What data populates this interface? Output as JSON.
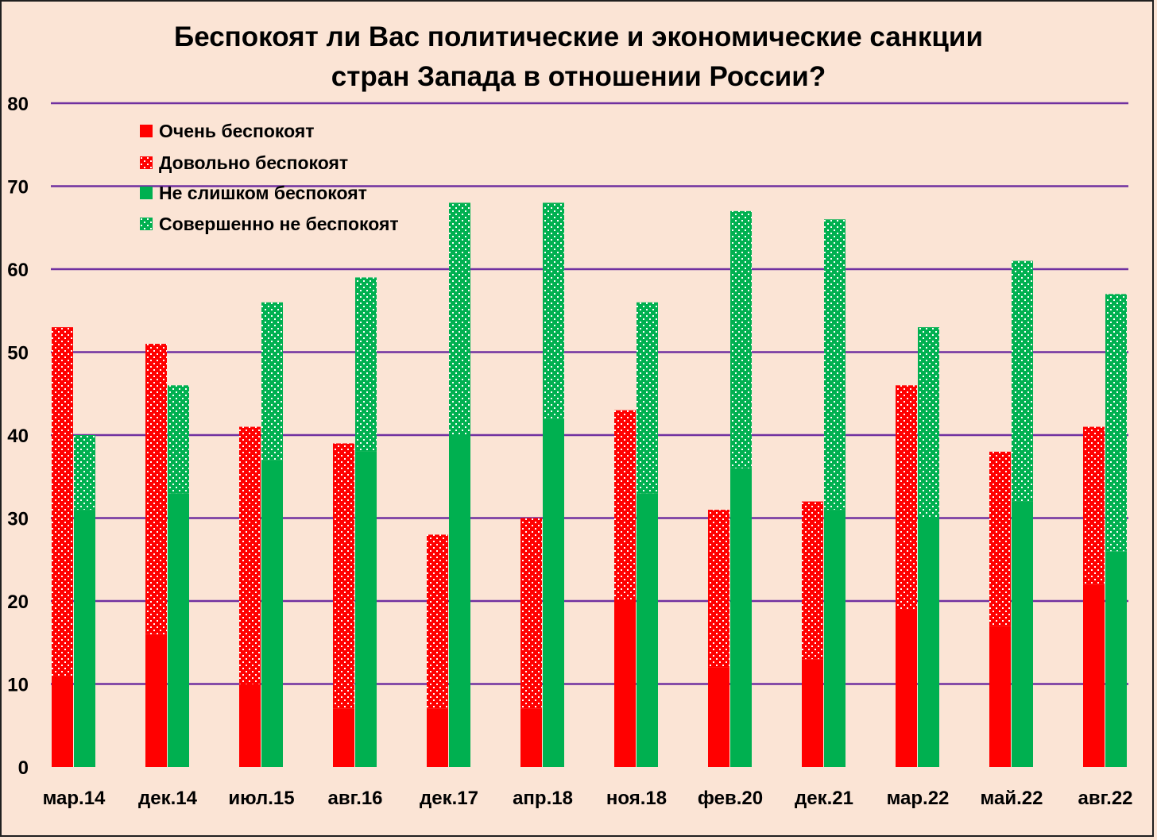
{
  "chart_data": {
    "type": "bar",
    "title": "Беспокоят ли Вас политические и экономические санкции стран Запада в отношении России?",
    "title_lines": [
      "Беспокоят ли Вас политические и экономические санкции",
      "стран Запада в отношении России?"
    ],
    "categories": [
      "мар.14",
      "дек.14",
      "июл.15",
      "авг.16",
      "дек.17",
      "апр.18",
      "ноя.18",
      "фев.20",
      "дек.21",
      "мар.22",
      "май.22",
      "авг.22"
    ],
    "ylim": [
      0,
      80
    ],
    "yticks": [
      "0",
      "10",
      "20",
      "30",
      "40",
      "50",
      "60",
      "70",
      "80"
    ],
    "grid": true,
    "legend_position": "top-left",
    "stacks": [
      {
        "name": "concerned",
        "series": [
          "Очень  беспокоят",
          "Довольно беспокоят"
        ]
      },
      {
        "name": "not-concerned",
        "series": [
          "Не слишком беспокоят",
          "Совершенно не беспокоят"
        ]
      }
    ],
    "series": [
      {
        "name": "Очень  беспокоят",
        "stack": 0,
        "color": "#ff0000",
        "pattern": "solid",
        "values": [
          11,
          16,
          10,
          7,
          7,
          7,
          20,
          12,
          13,
          19,
          17,
          22
        ]
      },
      {
        "name": "Довольно беспокоят",
        "stack": 0,
        "color": "#ff0000",
        "pattern": "dotted",
        "values": [
          42,
          35,
          31,
          32,
          21,
          23,
          23,
          19,
          19,
          27,
          21,
          19
        ]
      },
      {
        "name": "Не слишком беспокоят",
        "stack": 1,
        "color": "#00b050",
        "pattern": "solid",
        "values": [
          31,
          33,
          37,
          38,
          40,
          42,
          33,
          36,
          31,
          30,
          32,
          26
        ]
      },
      {
        "name": "Совершенно не беспокоят",
        "stack": 1,
        "color": "#00b050",
        "pattern": "dotted",
        "values": [
          9,
          13,
          19,
          21,
          28,
          26,
          23,
          31,
          35,
          23,
          29,
          31
        ]
      }
    ],
    "gridline_color": "#7030a0"
  }
}
